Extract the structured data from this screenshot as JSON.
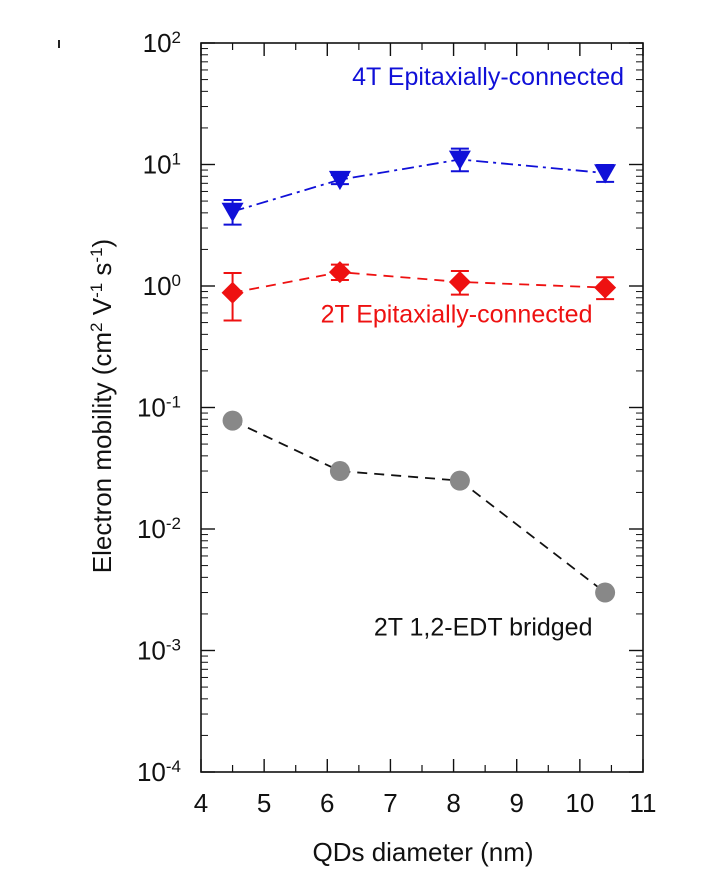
{
  "chart_data": {
    "type": "scatter",
    "xlabel": "QDs diameter (nm)",
    "ylabel": "Electron mobility (cm² V⁻¹ s⁻¹)",
    "ylabel_parts": {
      "main": "Electron mobility (cm",
      "sup1": "2",
      "mid1": " V",
      "sup2": "-1",
      "mid2": " s",
      "sup3": "-1",
      "end": ")"
    },
    "xlim": [
      4,
      11
    ],
    "ylim": [
      0.0001,
      100
    ],
    "yscale": "log",
    "x_ticks": [
      {
        "value": 4,
        "label": "4"
      },
      {
        "value": 5,
        "label": "5"
      },
      {
        "value": 6,
        "label": "6"
      },
      {
        "value": 7,
        "label": "7"
      },
      {
        "value": 8,
        "label": "8"
      },
      {
        "value": 9,
        "label": "9"
      },
      {
        "value": 10,
        "label": "10"
      },
      {
        "value": 11,
        "label": "11"
      }
    ],
    "y_ticks": [
      {
        "value": 100,
        "base": "10",
        "exp": "2"
      },
      {
        "value": 10,
        "base": "10",
        "exp": "1"
      },
      {
        "value": 1,
        "base": "10",
        "exp": "0"
      },
      {
        "value": 0.1,
        "base": "10",
        "exp": "-1"
      },
      {
        "value": 0.01,
        "base": "10",
        "exp": "-2"
      },
      {
        "value": 0.001,
        "base": "10",
        "exp": "-3"
      },
      {
        "value": 0.0001,
        "base": "10",
        "exp": "-4"
      }
    ],
    "grid": false,
    "series": [
      {
        "name": "4T Epitaxially-connected",
        "color": "#1010d8",
        "marker": "triangle-down",
        "line_style": "dash-dot",
        "x": [
          4.5,
          6.2,
          8.1,
          10.4
        ],
        "y": [
          4.1,
          7.5,
          11.0,
          8.5
        ],
        "y_err_low": [
          3.2,
          6.9,
          8.8,
          7.2
        ],
        "y_err_high": [
          5.1,
          8.2,
          13.5,
          9.9
        ]
      },
      {
        "name": "2T Epitaxially-connected",
        "color": "#ee1111",
        "marker": "diamond",
        "line_style": "dash",
        "x": [
          4.5,
          6.2,
          8.1,
          10.4
        ],
        "y": [
          0.88,
          1.3,
          1.08,
          0.97
        ],
        "y_err_low": [
          0.52,
          1.12,
          0.85,
          0.78
        ],
        "y_err_high": [
          1.28,
          1.5,
          1.33,
          1.18
        ]
      },
      {
        "name": "2T 1,2-EDT bridged",
        "color": "#888888",
        "marker": "circle",
        "line_style": "dash",
        "x": [
          4.5,
          6.2,
          8.1,
          10.4
        ],
        "y": [
          0.078,
          0.03,
          0.025,
          0.003
        ]
      }
    ],
    "annotations": [
      {
        "text": "4T Epitaxially-connected",
        "color": "#1010d8",
        "x": 10.7,
        "y": 45
      },
      {
        "text": "2T Epitaxially-connected",
        "color": "#ee1111",
        "x": 10.2,
        "y": 0.5
      },
      {
        "text": "2T 1,2-EDT bridged",
        "color": "#111111",
        "x": 10.2,
        "y": 0.00133
      }
    ]
  }
}
